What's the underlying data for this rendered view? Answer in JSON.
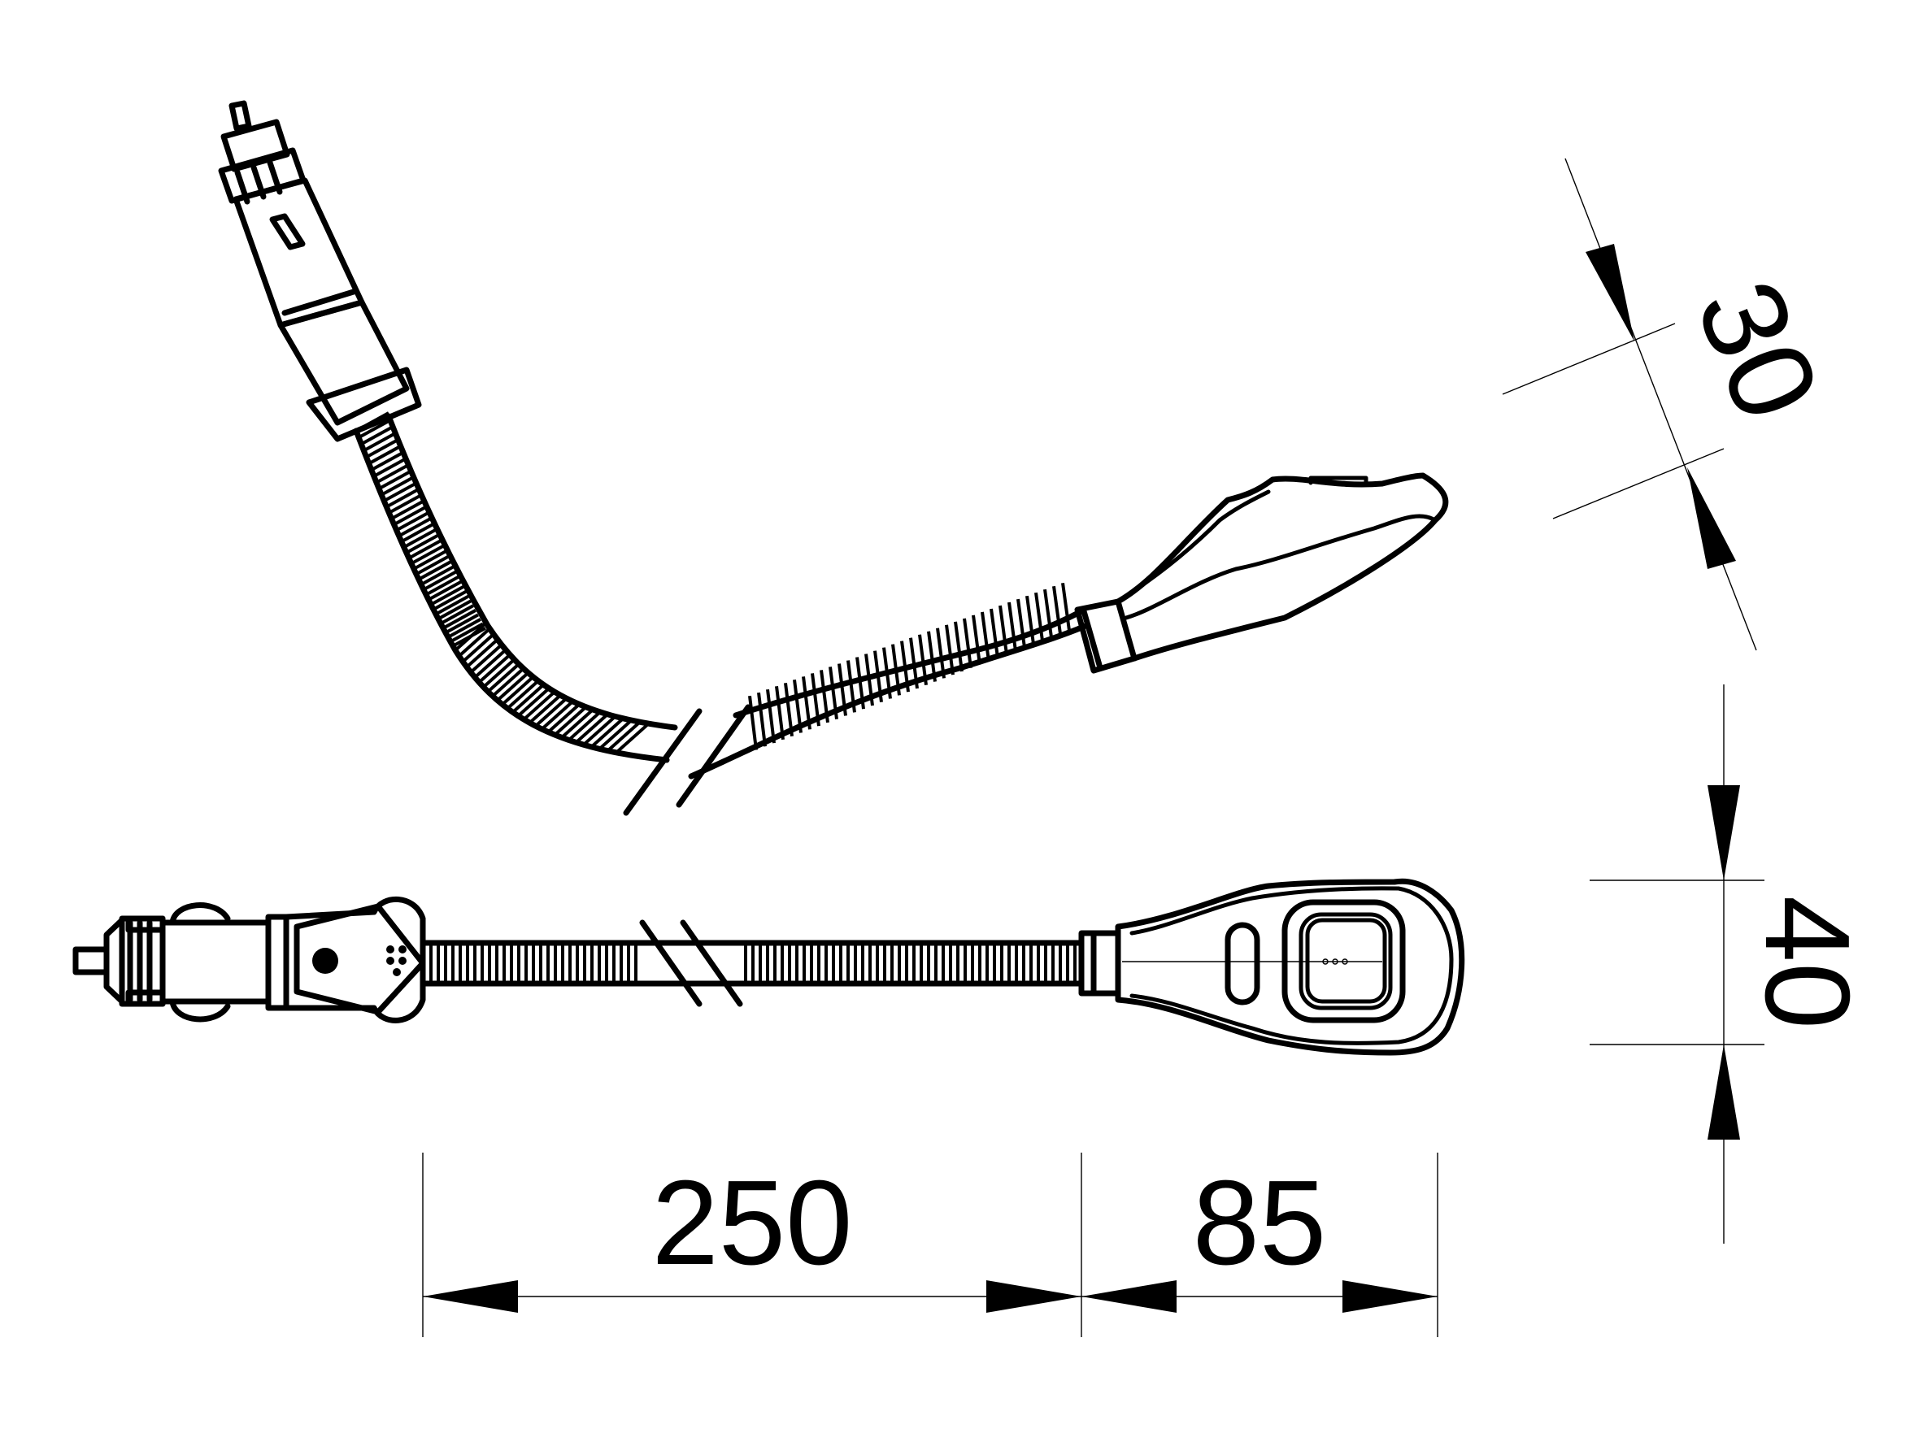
{
  "dimensions": {
    "hose_length": "250",
    "lamp_head_length": "85",
    "head_height_side": "30",
    "head_width_top": "40"
  },
  "colors": {
    "line": "#000000",
    "background": "#ffffff"
  }
}
